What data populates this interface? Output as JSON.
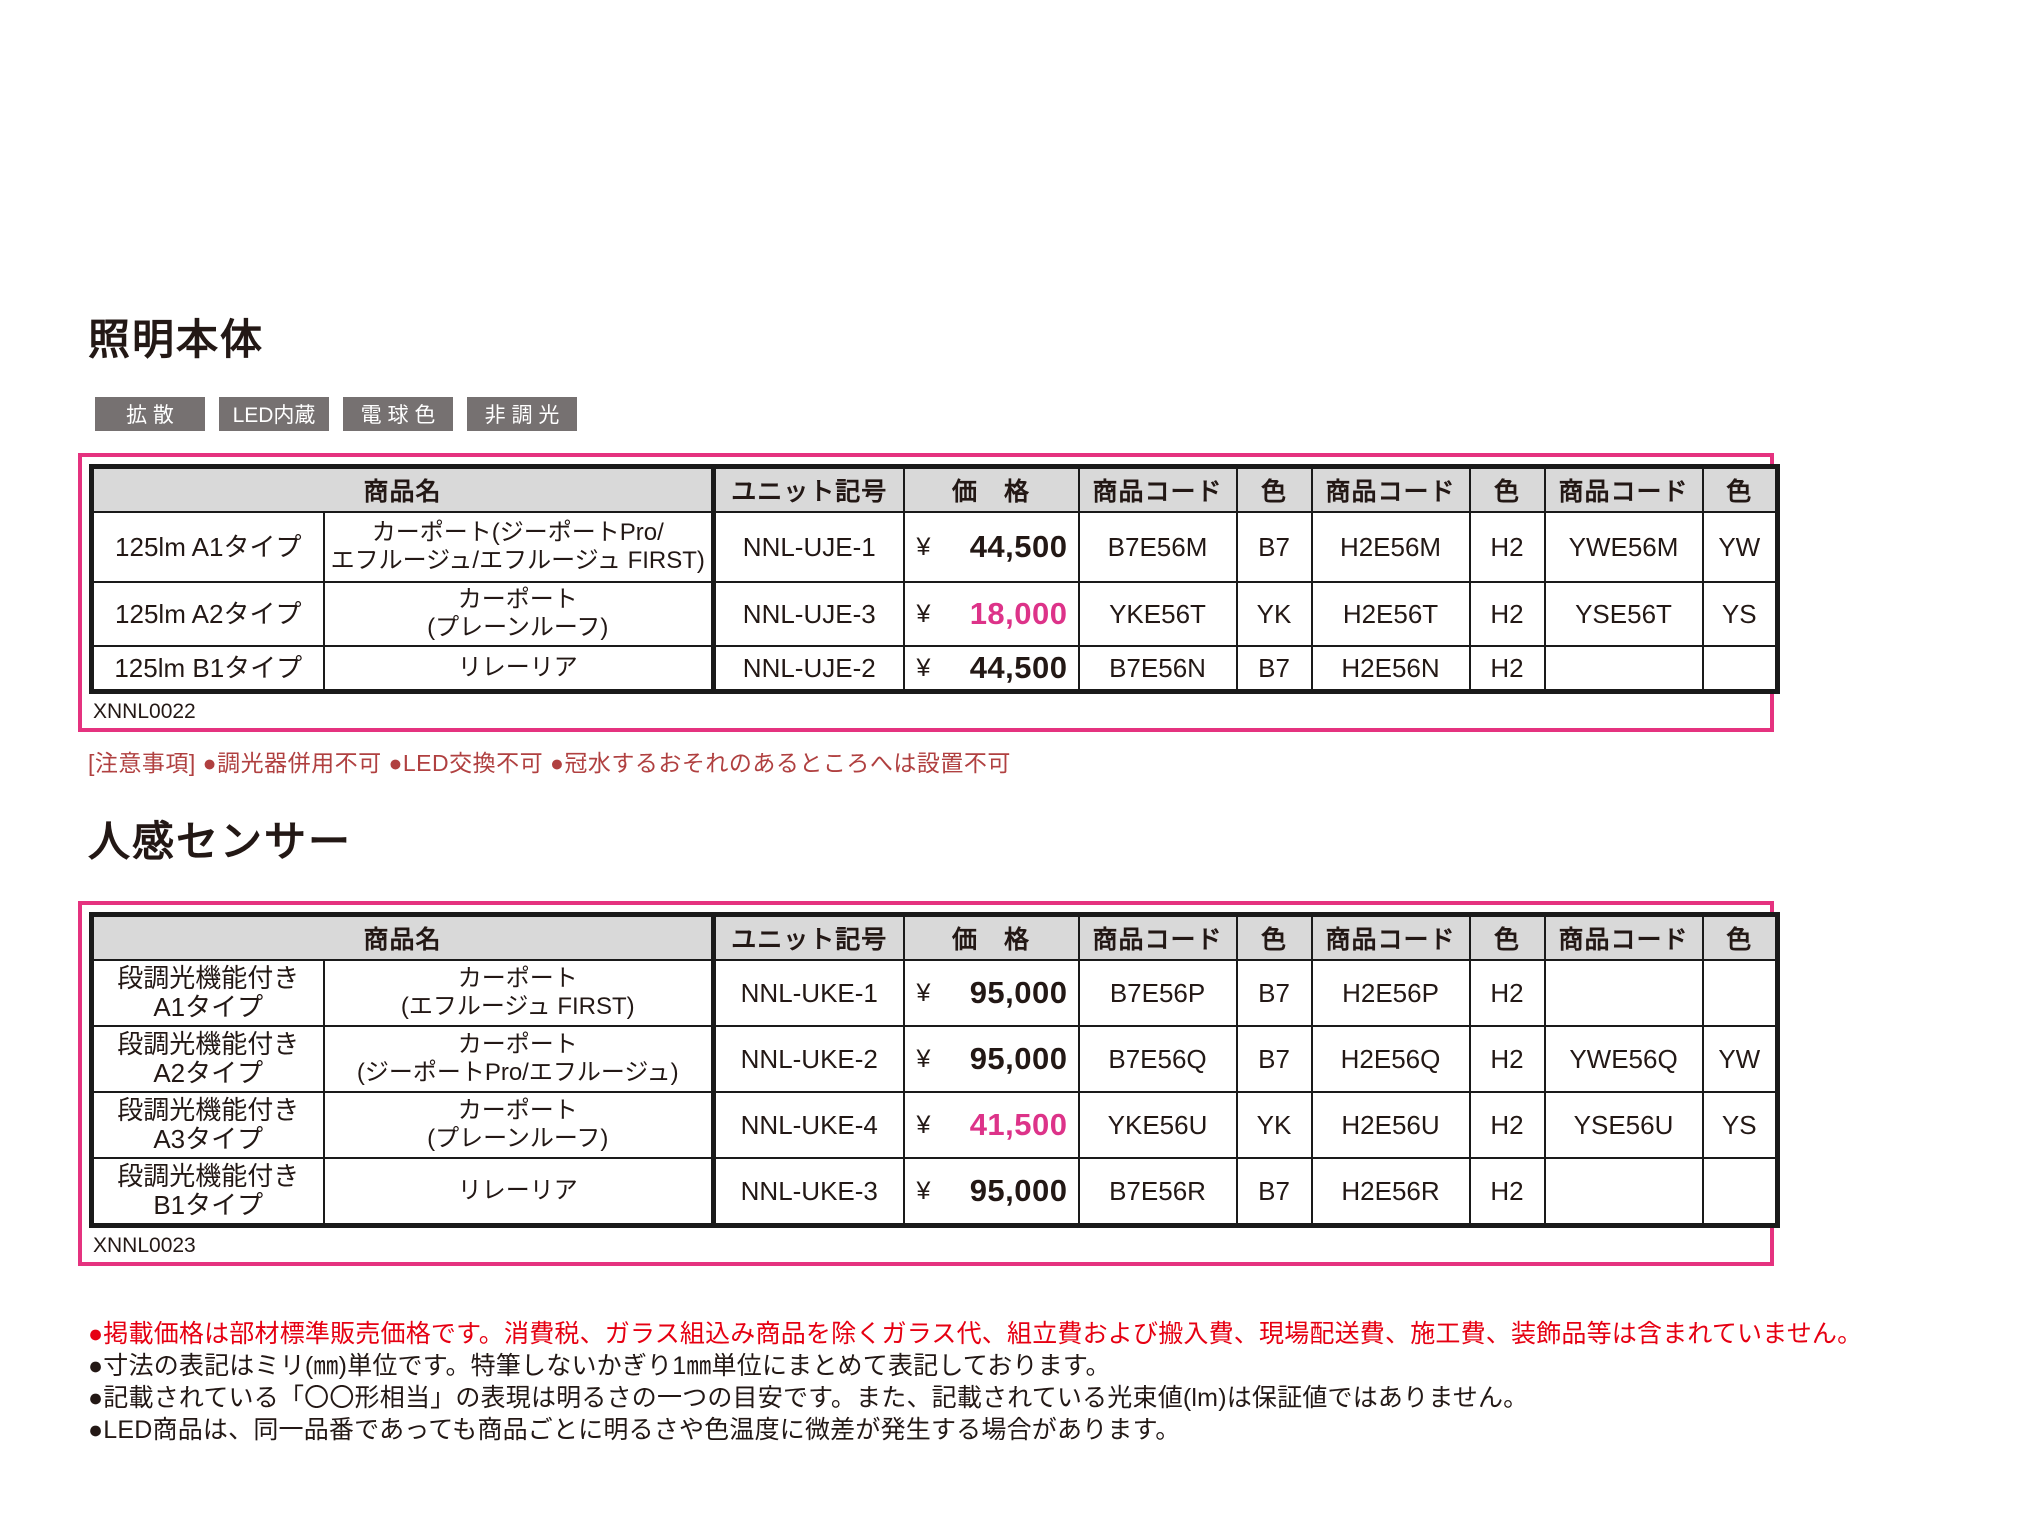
{
  "palette": {
    "table_frame_pink": "#e5327f",
    "price_highlight_pink": "#dd3389",
    "notice_red": "#b04040",
    "footnote_red": "#e60012",
    "badge_gray": "#767171",
    "header_gray": "#d9d9d9",
    "text_black": "#231815"
  },
  "sections": [
    {
      "title": "照明本体",
      "badges": [
        "拡 散",
        "LED内蔵",
        "電 球 色",
        "非 調 光"
      ],
      "code_label": "XNNL0022",
      "notice": "[注意事項] ●調光器併用不可 ●LED交換不可 ●冠水するおそれのあるところへは設置不可",
      "table": {
        "headers": [
          "商品名",
          "ユニット記号",
          "価　格",
          "商品コード",
          "色",
          "商品コード",
          "色",
          "商品コード",
          "色"
        ],
        "rows": [
          {
            "type": [
              "125lm A1タイプ"
            ],
            "name": [
              "カーポート(ジーポートPro/",
              "エフルージュ/エフルージュ FIRST)"
            ],
            "unit": "NNL-UJE-1",
            "currency": "¥",
            "price": "44,500",
            "price_highlight": false,
            "codes": [
              "B7E56M",
              "H2E56M",
              "YWE56M"
            ],
            "colors": [
              "B7",
              "H2",
              "YW"
            ],
            "height_class": "row-tall"
          },
          {
            "type": [
              "125lm A2タイプ"
            ],
            "name": [
              "カーポート",
              "(プレーンルーフ)"
            ],
            "unit": "NNL-UJE-3",
            "currency": "¥",
            "price": "18,000",
            "price_highlight": true,
            "codes": [
              "YKE56T",
              "H2E56T",
              "YSE56T"
            ],
            "colors": [
              "YK",
              "H2",
              "YS"
            ],
            "height_class": "row-mid"
          },
          {
            "type": [
              "125lm B1タイプ"
            ],
            "name": [
              "リレーリア"
            ],
            "unit": "NNL-UJE-2",
            "currency": "¥",
            "price": "44,500",
            "price_highlight": false,
            "codes": [
              "B7E56N",
              "H2E56N",
              ""
            ],
            "colors": [
              "B7",
              "H2",
              ""
            ],
            "height_class": "row-low"
          }
        ]
      }
    },
    {
      "title": "人感センサー",
      "badges": [],
      "code_label": "XNNL0023",
      "notice": "",
      "table": {
        "headers": [
          "商品名",
          "ユニット記号",
          "価　格",
          "商品コード",
          "色",
          "商品コード",
          "色",
          "商品コード",
          "色"
        ],
        "rows": [
          {
            "type": [
              "段調光機能付き",
              "A1タイプ"
            ],
            "name": [
              "カーポート",
              "(エフルージュ FIRST)"
            ],
            "unit": "NNL-UKE-1",
            "currency": "¥",
            "price": "95,000",
            "price_highlight": false,
            "codes": [
              "B7E56P",
              "H2E56P",
              ""
            ],
            "colors": [
              "B7",
              "H2",
              ""
            ],
            "height_class": "row-mid"
          },
          {
            "type": [
              "段調光機能付き",
              "A2タイプ"
            ],
            "name": [
              "カーポート",
              "(ジーポートPro/エフルージュ)"
            ],
            "unit": "NNL-UKE-2",
            "currency": "¥",
            "price": "95,000",
            "price_highlight": false,
            "codes": [
              "B7E56Q",
              "H2E56Q",
              "YWE56Q"
            ],
            "colors": [
              "B7",
              "H2",
              "YW"
            ],
            "height_class": "row-mid"
          },
          {
            "type": [
              "段調光機能付き",
              "A3タイプ"
            ],
            "name": [
              "カーポート",
              "(プレーンルーフ)"
            ],
            "unit": "NNL-UKE-4",
            "currency": "¥",
            "price": "41,500",
            "price_highlight": true,
            "codes": [
              "YKE56U",
              "H2E56U",
              "YSE56U"
            ],
            "colors": [
              "YK",
              "H2",
              "YS"
            ],
            "height_class": "row-mid"
          },
          {
            "type": [
              "段調光機能付き",
              "B1タイプ"
            ],
            "name": [
              "リレーリア"
            ],
            "unit": "NNL-UKE-3",
            "currency": "¥",
            "price": "95,000",
            "price_highlight": false,
            "codes": [
              "B7E56R",
              "H2E56R",
              ""
            ],
            "colors": [
              "B7",
              "H2",
              ""
            ],
            "height_class": "row-mid"
          }
        ]
      }
    }
  ],
  "footnotes": [
    {
      "text": "●掲載価格は部材標準販売価格です。消費税、ガラス組込み商品を除くガラス代、組立費および搬入費、現場配送費、施工費、装飾品等は含まれていません。",
      "red": true
    },
    {
      "text": "●寸法の表記はミリ(㎜)単位です。特筆しないかぎり1㎜単位にまとめて表記しております。",
      "red": false
    },
    {
      "text": "●記載されている「〇〇形相当」の表現は明るさの一つの目安です。また、記載されている光束値(lm)は保証値ではありません。",
      "red": false
    },
    {
      "text": "●LED商品は、同一品番であっても商品ごとに明るさや色温度に微差が発生する場合があります。",
      "red": false
    }
  ]
}
